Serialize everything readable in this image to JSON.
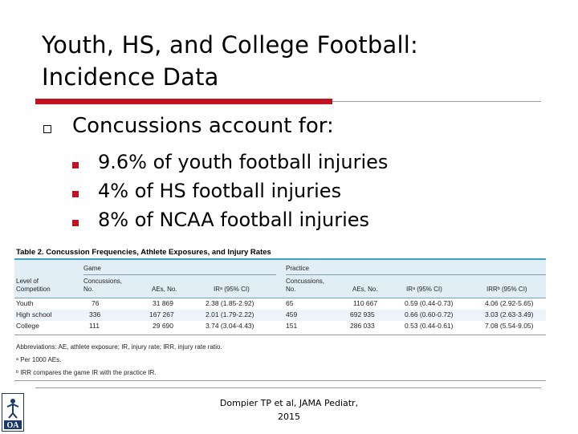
{
  "slide": {
    "title_line1": "Youth, HS, and College Football:",
    "title_line2": "Incidence Data",
    "bullet": "Concussions account for:",
    "subbullets": [
      "9.6% of youth football injuries",
      "4% of HS football injuries",
      "8% of NCAA football injuries"
    ],
    "citation_line1": "Dompier TP et al, JAMA Pediatr,",
    "citation_line2": "2015"
  },
  "colors": {
    "accent_red": "#c1121f",
    "table_band": "#e2eef6",
    "table_rule": "#3fa0c9"
  },
  "table": {
    "caption": "Table 2. Concussion Frequencies, Athlete Exposures, and Injury Rates",
    "group_game": "Game",
    "group_practice": "Practice",
    "col_level": "Level of Competition",
    "col_game_conc": "Concussions, No.",
    "col_game_aes": "AEs, No.",
    "col_game_ir": "IRᵃ (95% CI)",
    "col_prac_conc": "Concussions, No.",
    "col_prac_aes": "AEs, No.",
    "col_prac_ir": "IRᵃ (95% CI)",
    "col_irr": "IRRᵇ (95% CI)",
    "rows": [
      [
        "Youth",
        "76",
        "31 869",
        "2.38 (1.85-2.92)",
        "65",
        "110 667",
        "0.59 (0.44-0.73)",
        "4.06 (2.92-5.65)"
      ],
      [
        "High school",
        "336",
        "167 267",
        "2.01 (1.79-2.22)",
        "459",
        "692 935",
        "0.66 (0.60-0.72)",
        "3.03 (2.63-3.49)"
      ],
      [
        "College",
        "111",
        "29 690",
        "3.74 (3.04-4.43)",
        "151",
        "286 033",
        "0.53 (0.44-0.61)",
        "7.08 (5.54-9.05)"
      ]
    ],
    "footnote1": "Abbreviations: AE, athlete exposure; IR, injury rate; IRR, injury rate ratio.",
    "footnote2": "ᵃ Per 1000 AEs.",
    "footnote3": "ᵇ IRR compares the game IR with the practice IR."
  },
  "logo": {
    "icon": "nata-logo-icon",
    "text": "OA"
  }
}
